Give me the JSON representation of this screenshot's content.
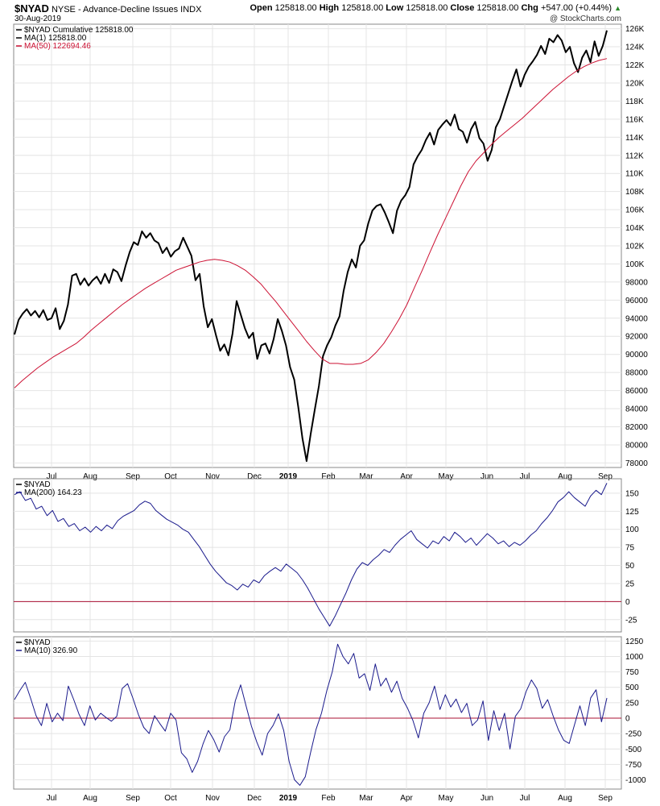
{
  "header": {
    "symbol": "$NYAD",
    "description": "NYSE - Advance-Decline Issues",
    "exchange": "INDX",
    "date": "30-Aug-2019",
    "open_label": "Open",
    "open": "125818.00",
    "high_label": "High",
    "high": "125818.00",
    "low_label": "Low",
    "low": "125818.00",
    "close_label": "Close",
    "close": "125818.00",
    "chg_label": "Chg",
    "chg": "+547.00 (+0.44%)",
    "credit": "@ StockCharts.com"
  },
  "colors": {
    "price": "#000000",
    "ma50": "#cc1133",
    "osc": "#1a1a8c",
    "zero": "#aa1133",
    "grid": "#e4e4e4"
  },
  "chart_data": [
    {
      "type": "line",
      "legend": [
        {
          "text": "$NYAD Cumulative 125818.00",
          "color": "#000000"
        },
        {
          "text": "MA(1) 125818.00",
          "color": "#000000"
        },
        {
          "text": "MA(50) 122694.46",
          "color": "#cc1133"
        }
      ],
      "ylim": [
        77500,
        126500
      ],
      "yticks": [
        "78000",
        "80000",
        "82000",
        "84000",
        "86000",
        "88000",
        "90000",
        "92000",
        "94000",
        "96000",
        "98000",
        "100K",
        "102K",
        "104K",
        "106K",
        "108K",
        "110K",
        "112K",
        "114K",
        "116K",
        "118K",
        "120K",
        "122K",
        "124K",
        "126K"
      ],
      "series": [
        {
          "key": "cumulative",
          "values": [
            92200,
            93800,
            94500,
            95000,
            94300,
            94800,
            94100,
            94900,
            93800,
            94000,
            95100,
            92800,
            93700,
            95500,
            98700,
            98900,
            97700,
            98400,
            97600,
            98200,
            98600,
            97800,
            98900,
            97900,
            99400,
            99100,
            98100,
            99800,
            101300,
            102400,
            102100,
            103600,
            102900,
            103400,
            102600,
            102300,
            101200,
            101800,
            100800,
            101400,
            101700,
            102900,
            101900,
            100900,
            98200,
            98900,
            95300,
            93000,
            93900,
            92100,
            90400,
            91100,
            89900,
            92300,
            95900,
            94400,
            92900,
            91800,
            92400,
            89500,
            91000,
            91200,
            90100,
            91700,
            93900,
            92600,
            91000,
            88600,
            87200,
            84100,
            80700,
            78200,
            81200,
            83900,
            86500,
            89800,
            91000,
            91900,
            93200,
            94200,
            97000,
            99100,
            100500,
            99600,
            102000,
            102600,
            104500,
            105900,
            106400,
            106600,
            105700,
            104600,
            103400,
            105900,
            107000,
            107600,
            108500,
            111000,
            111900,
            112600,
            113700,
            114500,
            113200,
            114800,
            115400,
            115900,
            115300,
            116500,
            114900,
            114600,
            113400,
            114900,
            115700,
            113900,
            113300,
            111400,
            112600,
            115100,
            116000,
            117400,
            118800,
            120200,
            121500,
            119600,
            120900,
            121800,
            122400,
            123100,
            124100,
            123200,
            124900,
            124500,
            125300,
            124700,
            123400,
            124000,
            122200,
            121200,
            122800,
            123600,
            122300,
            124600,
            123000,
            124100,
            125818
          ]
        },
        {
          "key": "ma50",
          "values": [
            86300,
            87100,
            87800,
            88500,
            89100,
            89700,
            90200,
            90700,
            91200,
            91900,
            92700,
            93400,
            94100,
            94800,
            95500,
            96100,
            96700,
            97300,
            97800,
            98300,
            98800,
            99300,
            99600,
            99900,
            100200,
            100400,
            100500,
            100400,
            100200,
            99800,
            99300,
            98600,
            97800,
            96800,
            95800,
            94700,
            93600,
            92500,
            91400,
            90400,
            89500,
            89000,
            89000,
            88900,
            88900,
            89000,
            89400,
            90200,
            91200,
            92500,
            93900,
            95500,
            97400,
            99300,
            101300,
            103200,
            105000,
            106800,
            108600,
            110200,
            111400,
            112300,
            113200,
            114000,
            114700,
            115400,
            116100,
            116900,
            117700,
            118500,
            119300,
            120000,
            120700,
            121300,
            121800,
            122200,
            122500,
            122694
          ]
        }
      ]
    },
    {
      "type": "line",
      "legend": [
        {
          "text": "$NYAD",
          "color": "#000000"
        },
        {
          "text": "MA(200) 164.23",
          "color": "#1a1a8c"
        }
      ],
      "ylim": [
        -42,
        170
      ],
      "yticks": [
        "-25",
        "0",
        "25",
        "50",
        "75",
        "100",
        "125",
        "150"
      ],
      "zero_line": 0,
      "series": [
        {
          "key": "ma200",
          "values": [
            148,
            152,
            140,
            143,
            128,
            132,
            119,
            126,
            111,
            115,
            104,
            108,
            98,
            103,
            96,
            104,
            98,
            106,
            101,
            112,
            118,
            122,
            126,
            134,
            139,
            136,
            126,
            120,
            114,
            110,
            106,
            100,
            96,
            86,
            76,
            64,
            52,
            42,
            34,
            26,
            22,
            16,
            24,
            20,
            30,
            26,
            36,
            42,
            47,
            42,
            52,
            46,
            40,
            30,
            18,
            4,
            -10,
            -22,
            -34,
            -20,
            -4,
            12,
            30,
            45,
            54,
            50,
            58,
            64,
            72,
            68,
            78,
            86,
            92,
            98,
            86,
            80,
            74,
            84,
            80,
            90,
            84,
            96,
            90,
            82,
            88,
            78,
            86,
            94,
            88,
            80,
            84,
            76,
            82,
            78,
            84,
            92,
            98,
            108,
            116,
            126,
            138,
            144,
            152,
            144,
            138,
            132,
            146,
            154,
            148,
            164
          ]
        }
      ]
    },
    {
      "type": "line",
      "legend": [
        {
          "text": "$NYAD",
          "color": "#000000"
        },
        {
          "text": "MA(10) 326.90",
          "color": "#1a1a8c"
        }
      ],
      "ylim": [
        -1150,
        1320
      ],
      "yticks": [
        "-1000",
        "-750",
        "-500",
        "-250",
        "0",
        "250",
        "500",
        "750",
        "1000",
        "1250"
      ],
      "zero_line": 0,
      "series": [
        {
          "key": "ma10",
          "values": [
            300,
            450,
            580,
            320,
            40,
            -120,
            240,
            -60,
            80,
            -40,
            520,
            300,
            60,
            -120,
            200,
            -30,
            80,
            10,
            -50,
            30,
            480,
            560,
            320,
            60,
            -150,
            -250,
            40,
            -90,
            -210,
            80,
            -30,
            -560,
            -660,
            -880,
            -700,
            -420,
            -200,
            -350,
            -550,
            -300,
            -190,
            280,
            540,
            200,
            -130,
            -390,
            -600,
            -250,
            -120,
            70,
            -200,
            -700,
            -1000,
            -1090,
            -950,
            -550,
            -180,
            80,
            450,
            750,
            1200,
            1000,
            880,
            1050,
            650,
            720,
            450,
            880,
            520,
            650,
            420,
            600,
            320,
            160,
            -40,
            -320,
            80,
            250,
            520,
            140,
            380,
            180,
            310,
            90,
            240,
            -120,
            -30,
            280,
            -360,
            120,
            -200,
            80,
            -500,
            30,
            150,
            430,
            620,
            480,
            160,
            300,
            40,
            -190,
            -360,
            -410,
            -100,
            200,
            -120,
            330,
            460,
            -60,
            326.9
          ]
        }
      ]
    }
  ],
  "xaxis": {
    "months": [
      "Jul",
      "Aug",
      "Sep",
      "Oct",
      "Nov",
      "Dec",
      "2019",
      "Feb",
      "Mar",
      "Apr",
      "May",
      "Jun",
      "Jul",
      "Aug",
      "Sep"
    ],
    "bold": [
      "2019"
    ]
  }
}
